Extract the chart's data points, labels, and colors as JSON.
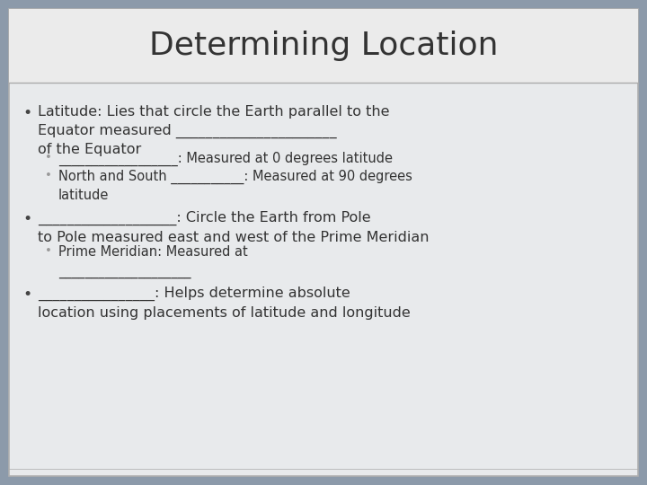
{
  "title": "Determining Location",
  "title_fontsize": 26,
  "title_color": "#333333",
  "slide_bg": "#8c9aaa",
  "title_area_bg": "#ebebeb",
  "content_area_bg": "#e8eaec",
  "border_color": "#b0b0b0",
  "divider_color": "#aaaaaa",
  "bullet1_main": "Latitude: Lies that circle the Earth parallel to the\nEquator measured ______________________\nof the Equator",
  "bullet1_sub1": "__________________: Measured at 0 degrees latitude",
  "bullet1_sub2": "North and South ___________: Measured at 90 degrees\nlatitude",
  "bullet2_main": "___________________: Circle the Earth from Pole\nto Pole measured east and west of the Prime Meridian",
  "bullet2_sub1": "Prime Meridian: Measured at\n____________________",
  "bullet3_main": "________________: Helps determine absolute\nlocation using placements of latitude and longitude",
  "content_fontsize": 11.5,
  "sub_fontsize": 10.5,
  "text_color": "#333333",
  "bullet_color": "#444444",
  "sub_bullet_color": "#999999"
}
